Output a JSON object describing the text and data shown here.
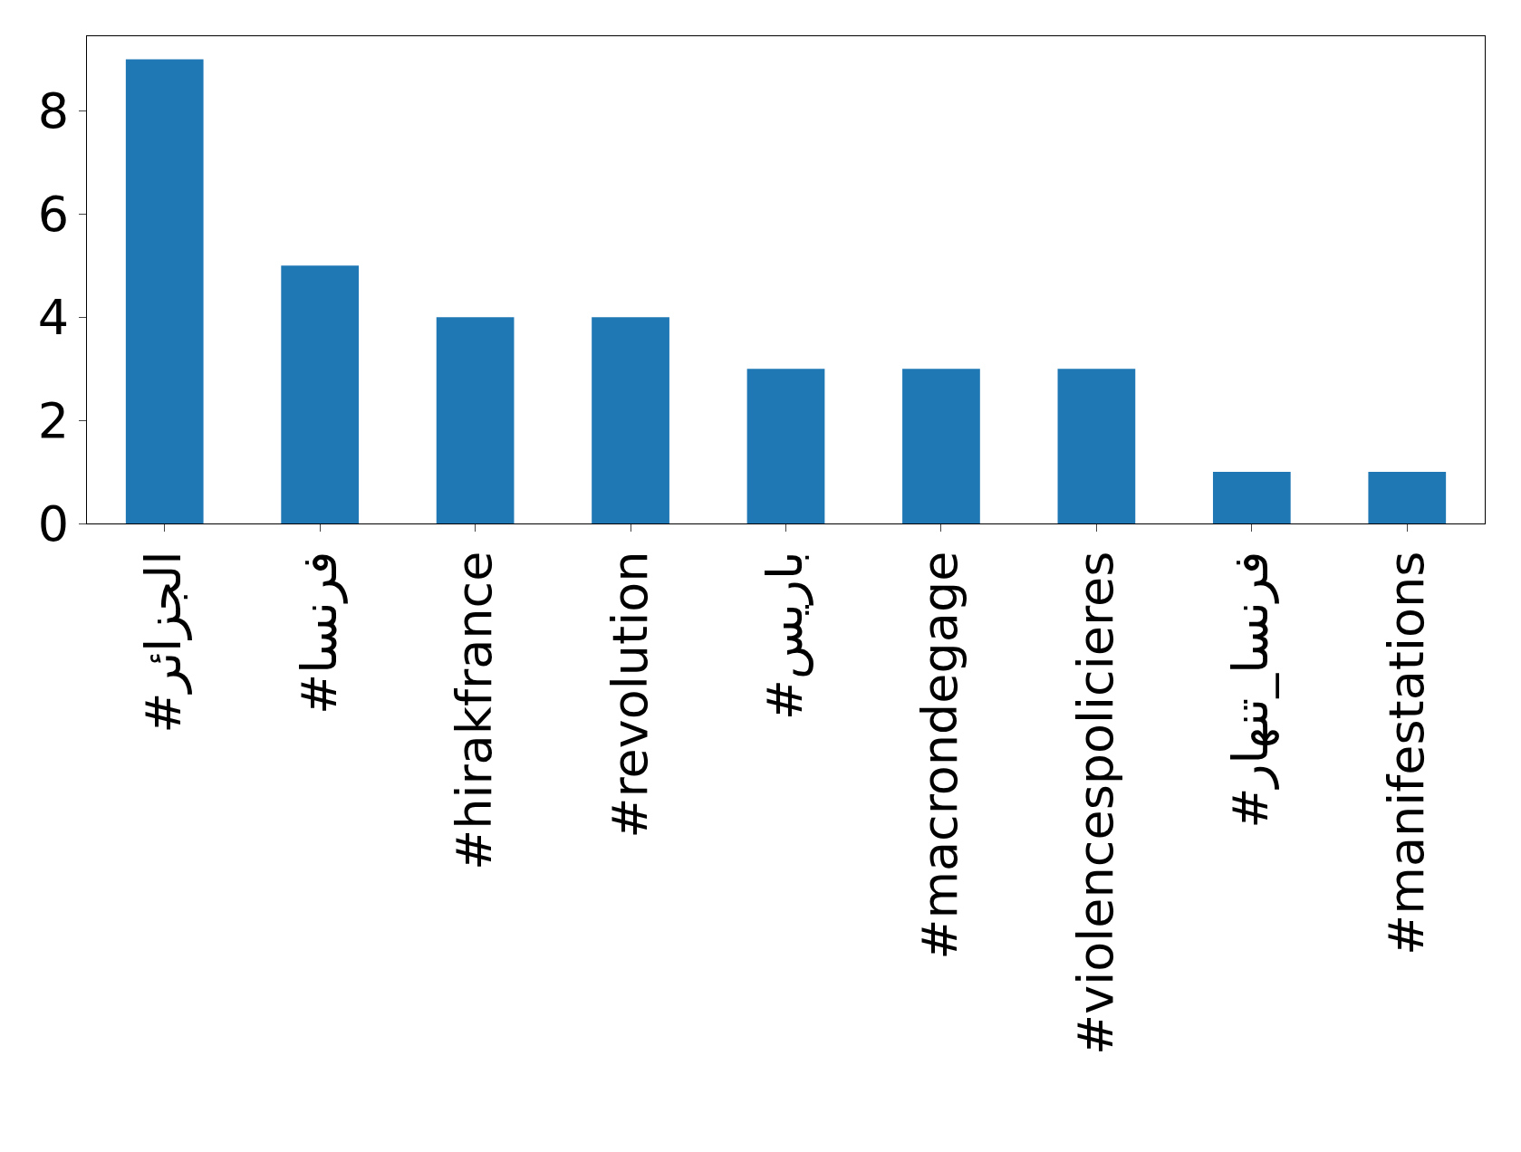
{
  "chart_data": {
    "type": "bar",
    "categories": [
      "#الجزائر",
      "#فرنسا",
      "#hirakfrance",
      "#revolution",
      "#باريس",
      "#macrondegage",
      "#violencespolicieres",
      "#فرنسا_تنهار",
      "#manifestations"
    ],
    "values": [
      9,
      5,
      4,
      4,
      3,
      3,
      3,
      1,
      1
    ],
    "color": "#1f77b4",
    "ylim": [
      0,
      9.45
    ],
    "yticks": [
      0,
      2,
      4,
      6,
      8
    ],
    "legend": false
  }
}
